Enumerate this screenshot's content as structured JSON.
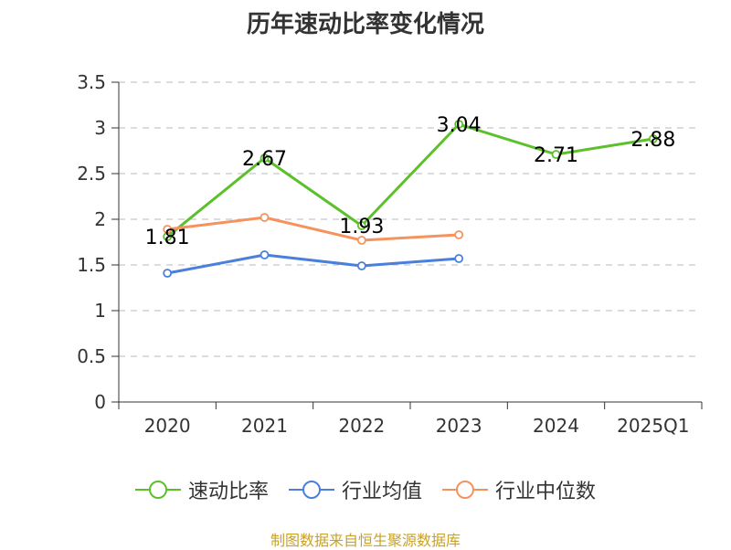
{
  "chart_data": {
    "type": "line",
    "title": "历年速动比率变化情况",
    "categories": [
      "2020",
      "2021",
      "2022",
      "2023",
      "2024",
      "2025Q1"
    ],
    "ylim": [
      0,
      3.5
    ],
    "yticks": [
      "0",
      "0.5",
      "1",
      "1.5",
      "2",
      "2.5",
      "3",
      "3.5"
    ],
    "grid": true,
    "legend_position": "bottom",
    "series": [
      {
        "name": "速动比率",
        "color": "#5cc02a",
        "values": [
          1.81,
          2.67,
          1.93,
          3.04,
          2.71,
          2.88
        ],
        "labels": [
          "1.81",
          "2.67",
          "1.93",
          "3.04",
          "2.71",
          "2.88"
        ]
      },
      {
        "name": "行业均值",
        "color": "#4a7fdc",
        "values": [
          1.41,
          1.61,
          1.49,
          1.57,
          null,
          null
        ]
      },
      {
        "name": "行业中位数",
        "color": "#f4935e",
        "values": [
          1.89,
          2.02,
          1.77,
          1.83,
          null,
          null
        ]
      }
    ]
  },
  "footer": {
    "source": "制图数据来自恒生聚源数据库"
  }
}
